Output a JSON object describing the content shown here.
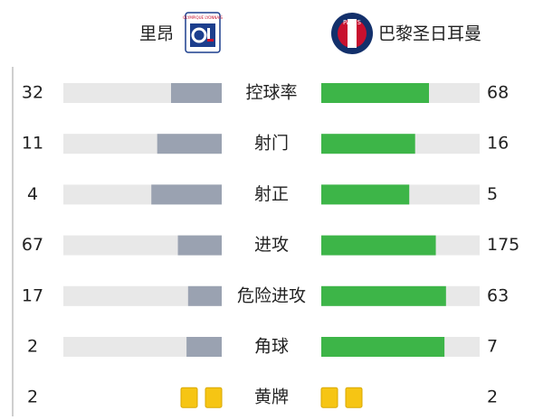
{
  "header": {
    "home": "里昂",
    "away": "巴黎圣日耳曼",
    "home_logo_text": "OLYMPIQUE LYONNAIS",
    "away_logo_text": "PARIS"
  },
  "stats": [
    {
      "label": "控球率",
      "home": 32,
      "away": 68,
      "display": "bar"
    },
    {
      "label": "射门",
      "home": 11,
      "away": 16,
      "display": "bar"
    },
    {
      "label": "射正",
      "home": 4,
      "away": 5,
      "display": "bar"
    },
    {
      "label": "进攻",
      "home": 67,
      "away": 175,
      "display": "bar"
    },
    {
      "label": "危险进攻",
      "home": 17,
      "away": 63,
      "display": "bar"
    },
    {
      "label": "角球",
      "home": 2,
      "away": 7,
      "display": "bar"
    },
    {
      "label": "黄牌",
      "home": 2,
      "away": 2,
      "display": "cards"
    }
  ],
  "colors": {
    "home": "#9aa2b1",
    "away": "#3db548",
    "track": "#e8e8e8",
    "card": "#f6c514"
  }
}
